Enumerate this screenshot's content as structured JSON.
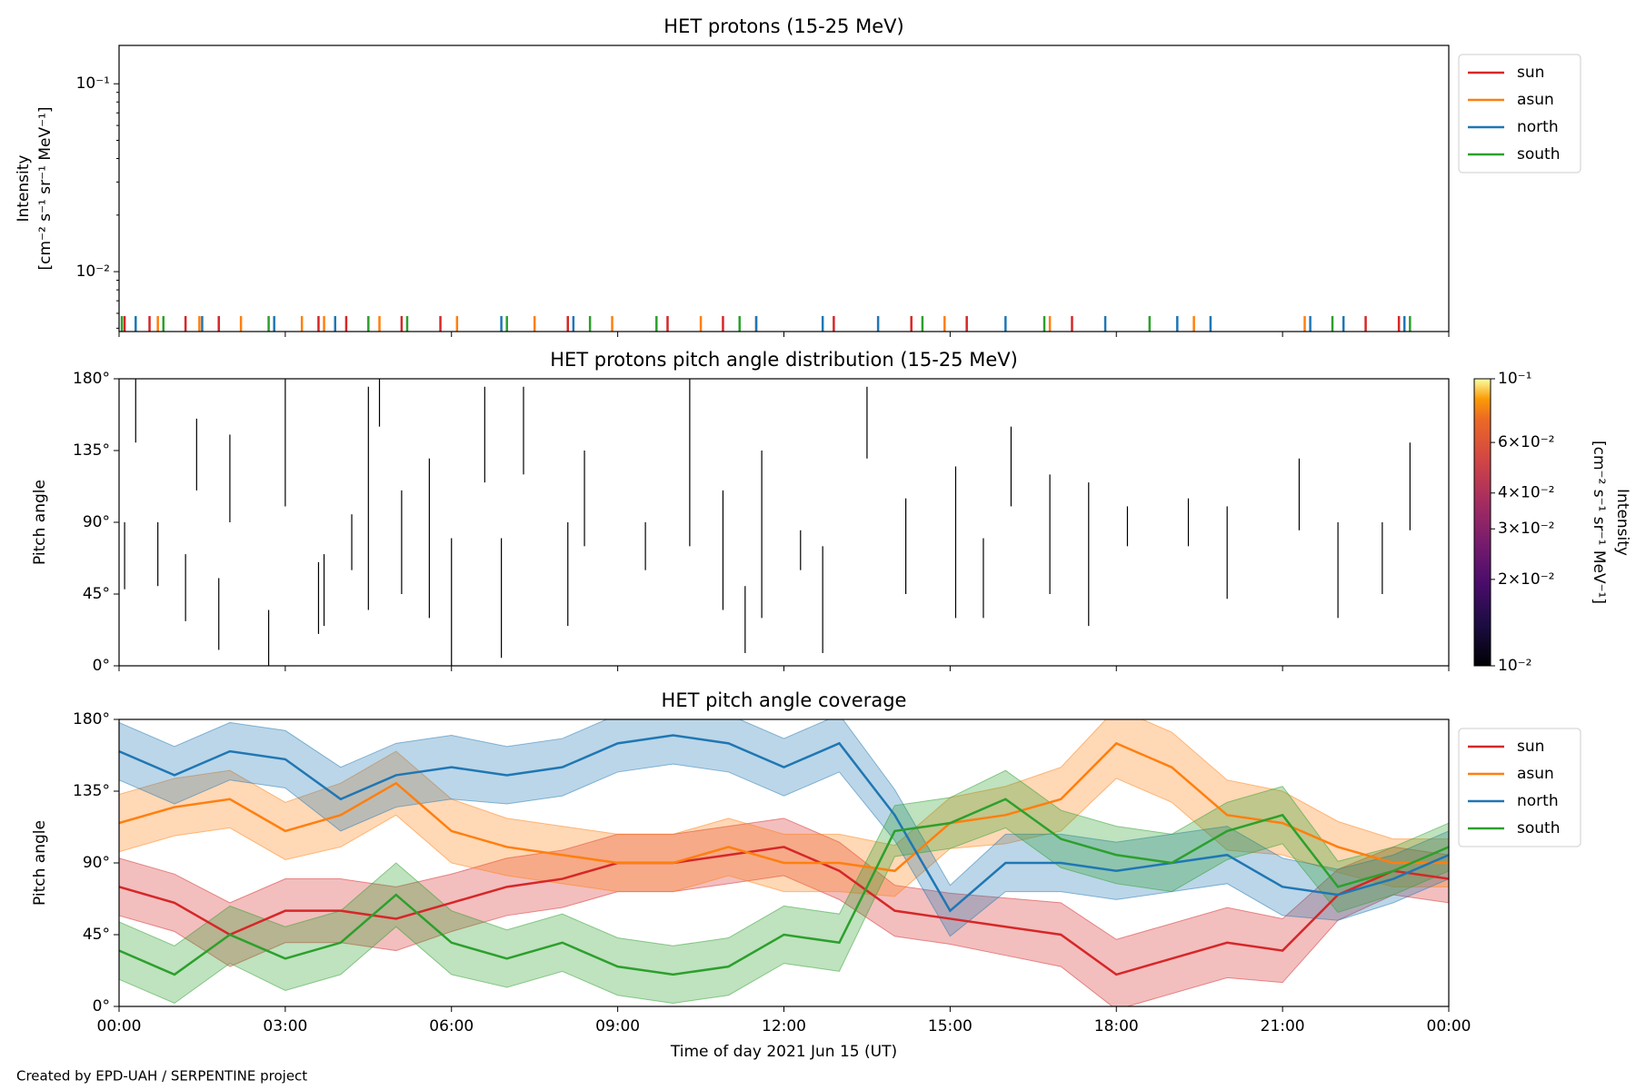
{
  "chart_data": [
    {
      "type": "stem",
      "title": "HET protons (15-25 MeV)",
      "ylabel": [
        "Intensity",
        "[cm⁻² s⁻¹ sr⁻¹ MeV⁻¹]"
      ],
      "ylog": true,
      "ylim": [
        0.0048,
        0.16
      ],
      "yticks": [
        {
          "value": 0.01,
          "label": "10⁻²"
        },
        {
          "value": 0.1,
          "label": "10⁻¹"
        }
      ],
      "xlim": [
        0,
        24
      ],
      "xticks": [
        0,
        3,
        6,
        9,
        12,
        15,
        18,
        21,
        24
      ],
      "xtick_labels": false,
      "legend": "outside right",
      "series": [
        {
          "name": "sun",
          "color": "#d62728",
          "x": [
            0.1,
            0.55,
            1.2,
            1.8,
            3.6,
            4.1,
            5.1,
            5.8,
            8.1,
            9.9,
            10.9,
            12.9,
            14.3,
            15.3,
            17.2,
            22.5,
            23.1
          ],
          "values": [
            0.0058,
            0.0058,
            0.0058,
            0.0058,
            0.0058,
            0.0058,
            0.0058,
            0.0058,
            0.0058,
            0.0058,
            0.0058,
            0.0058,
            0.0058,
            0.0058,
            0.0058,
            0.0058,
            0.0058
          ]
        },
        {
          "name": "asun",
          "color": "#ff7f0e",
          "x": [
            0.7,
            1.45,
            2.2,
            3.3,
            3.7,
            4.7,
            6.1,
            7.5,
            8.9,
            10.5,
            11.5,
            14.9,
            16.8,
            19.4,
            21.4
          ],
          "values": [
            0.0058,
            0.0058,
            0.0058,
            0.0058,
            0.0058,
            0.0058,
            0.0058,
            0.0058,
            0.0058,
            0.0058,
            0.0058,
            0.0058,
            0.0058,
            0.0058,
            0.0058
          ]
        },
        {
          "name": "north",
          "color": "#1f77b4",
          "x": [
            0.3,
            1.5,
            2.8,
            3.9,
            6.9,
            8.2,
            11.5,
            12.7,
            13.7,
            16.0,
            17.8,
            19.1,
            19.7,
            21.5,
            22.1,
            23.2
          ],
          "values": [
            0.0058,
            0.0058,
            0.0058,
            0.0058,
            0.0058,
            0.0058,
            0.0058,
            0.0058,
            0.0058,
            0.0058,
            0.0058,
            0.0058,
            0.0058,
            0.0058,
            0.0058,
            0.0058
          ]
        },
        {
          "name": "south",
          "color": "#2ca02c",
          "x": [
            0.05,
            0.8,
            2.7,
            4.5,
            5.2,
            7.0,
            8.5,
            9.7,
            11.2,
            14.5,
            16.7,
            18.6,
            21.9,
            23.3
          ],
          "values": [
            0.0058,
            0.0058,
            0.0058,
            0.0058,
            0.0058,
            0.0058,
            0.0058,
            0.0058,
            0.0058,
            0.0058,
            0.0058,
            0.0058,
            0.0058,
            0.0058
          ]
        }
      ]
    },
    {
      "type": "heatmap",
      "title": "HET protons pitch angle distribution (15-25 MeV)",
      "ylabel": [
        "Pitch angle"
      ],
      "ylim": [
        0,
        180
      ],
      "yticks": [
        {
          "value": 0,
          "label": "0°"
        },
        {
          "value": 45,
          "label": "45°"
        },
        {
          "value": 90,
          "label": "90°"
        },
        {
          "value": 135,
          "label": "135°"
        },
        {
          "value": 180,
          "label": "180°"
        }
      ],
      "xlim": [
        0,
        24
      ],
      "xticks": [
        0,
        3,
        6,
        9,
        12,
        15,
        18,
        21,
        24
      ],
      "xtick_labels": false,
      "color": "#000000",
      "segments": {
        "x": [
          0.1,
          0.3,
          0.7,
          1.2,
          1.4,
          1.8,
          2.0,
          2.7,
          3.0,
          3.6,
          3.7,
          4.2,
          4.5,
          4.7,
          5.1,
          5.6,
          6.0,
          6.6,
          6.9,
          7.3,
          8.1,
          8.4,
          9.5,
          10.3,
          10.9,
          11.3,
          11.6,
          12.3,
          12.7,
          13.5,
          14.2,
          15.1,
          15.6,
          16.1,
          16.8,
          17.5,
          18.2,
          19.3,
          20.0,
          21.3,
          22.0,
          22.8,
          23.3
        ],
        "low": [
          48,
          140,
          50,
          28,
          110,
          10,
          90,
          0,
          100,
          20,
          25,
          60,
          35,
          150,
          45,
          30,
          0,
          115,
          5,
          120,
          25,
          75,
          60,
          75,
          35,
          8,
          30,
          60,
          8,
          130,
          45,
          30,
          30,
          100,
          45,
          25,
          75,
          75,
          42,
          85,
          30,
          45,
          85
        ],
        "high": [
          90,
          180,
          90,
          70,
          155,
          55,
          145,
          35,
          180,
          65,
          70,
          95,
          175,
          180,
          110,
          130,
          80,
          175,
          80,
          175,
          90,
          135,
          90,
          180,
          110,
          50,
          135,
          85,
          75,
          175,
          105,
          125,
          80,
          150,
          120,
          115,
          100,
          105,
          100,
          130,
          90,
          90,
          140
        ]
      },
      "colorbar": {
        "label": [
          "Intensity",
          "[cm⁻² s⁻¹ sr⁻¹ MeV⁻¹]"
        ],
        "lim": [
          0.01,
          0.1
        ],
        "ticks": [
          {
            "value": 0.01,
            "label": "10⁻²"
          },
          {
            "value": 0.02,
            "label": "2×10⁻²"
          },
          {
            "value": 0.03,
            "label": "3×10⁻²"
          },
          {
            "value": 0.04,
            "label": "4×10⁻²"
          },
          {
            "value": 0.06,
            "label": "6×10⁻²"
          },
          {
            "value": 0.1,
            "label": "10⁻¹"
          }
        ]
      }
    },
    {
      "type": "line",
      "title": "HET pitch angle coverage",
      "ylabel": [
        "Pitch angle"
      ],
      "xlabel": "Time of day 2021 Jun 15 (UT)",
      "ylim": [
        0,
        180
      ],
      "yticks": [
        {
          "value": 0,
          "label": "0°"
        },
        {
          "value": 45,
          "label": "45°"
        },
        {
          "value": 90,
          "label": "90°"
        },
        {
          "value": 135,
          "label": "135°"
        },
        {
          "value": 180,
          "label": "180°"
        }
      ],
      "xlim": [
        0,
        24
      ],
      "xticks": [
        {
          "value": 0,
          "label": "00:00"
        },
        {
          "value": 3,
          "label": "03:00"
        },
        {
          "value": 6,
          "label": "06:00"
        },
        {
          "value": 9,
          "label": "09:00"
        },
        {
          "value": 12,
          "label": "12:00"
        },
        {
          "value": 15,
          "label": "15:00"
        },
        {
          "value": 18,
          "label": "18:00"
        },
        {
          "value": 21,
          "label": "21:00"
        },
        {
          "value": 24,
          "label": "00:00"
        }
      ],
      "xtick_labels": true,
      "legend": "outside right",
      "x": [
        0,
        1,
        2,
        3,
        4,
        5,
        6,
        7,
        8,
        9,
        10,
        11,
        12,
        13,
        14,
        15,
        16,
        17,
        18,
        19,
        20,
        21,
        22,
        23,
        24
      ],
      "series": [
        {
          "name": "sun",
          "color": "#d62728",
          "values": [
            75,
            65,
            45,
            60,
            60,
            55,
            65,
            75,
            80,
            90,
            90,
            95,
            100,
            85,
            60,
            55,
            50,
            45,
            20,
            30,
            40,
            35,
            70,
            85,
            80
          ],
          "error": [
            18,
            18,
            20,
            20,
            20,
            20,
            18,
            18,
            18,
            18,
            18,
            18,
            18,
            18,
            16,
            16,
            18,
            20,
            22,
            22,
            22,
            20,
            16,
            15,
            15
          ]
        },
        {
          "name": "asun",
          "color": "#ff7f0e",
          "values": [
            115,
            125,
            130,
            110,
            120,
            140,
            110,
            100,
            95,
            90,
            90,
            100,
            90,
            90,
            85,
            115,
            120,
            130,
            165,
            150,
            120,
            115,
            100,
            90,
            90
          ],
          "error": [
            18,
            18,
            18,
            18,
            20,
            20,
            20,
            18,
            18,
            18,
            18,
            18,
            18,
            18,
            16,
            16,
            18,
            20,
            22,
            22,
            22,
            20,
            16,
            15,
            15
          ]
        },
        {
          "name": "north",
          "color": "#1f77b4",
          "values": [
            160,
            145,
            160,
            155,
            130,
            145,
            150,
            145,
            150,
            165,
            170,
            165,
            150,
            165,
            120,
            60,
            90,
            90,
            85,
            90,
            95,
            75,
            70,
            80,
            95
          ],
          "error": [
            18,
            18,
            18,
            18,
            20,
            20,
            20,
            18,
            18,
            18,
            18,
            18,
            18,
            18,
            16,
            16,
            18,
            18,
            18,
            18,
            18,
            18,
            16,
            15,
            15
          ]
        },
        {
          "name": "south",
          "color": "#2ca02c",
          "values": [
            35,
            20,
            45,
            30,
            40,
            70,
            40,
            30,
            40,
            25,
            20,
            25,
            45,
            40,
            110,
            115,
            130,
            105,
            95,
            90,
            110,
            120,
            75,
            85,
            100
          ],
          "error": [
            18,
            18,
            18,
            20,
            20,
            20,
            20,
            18,
            18,
            18,
            18,
            18,
            18,
            18,
            16,
            16,
            18,
            18,
            18,
            18,
            18,
            18,
            16,
            15,
            15
          ]
        }
      ]
    }
  ],
  "footer": "Created by EPD-UAH / SERPENTINE project"
}
